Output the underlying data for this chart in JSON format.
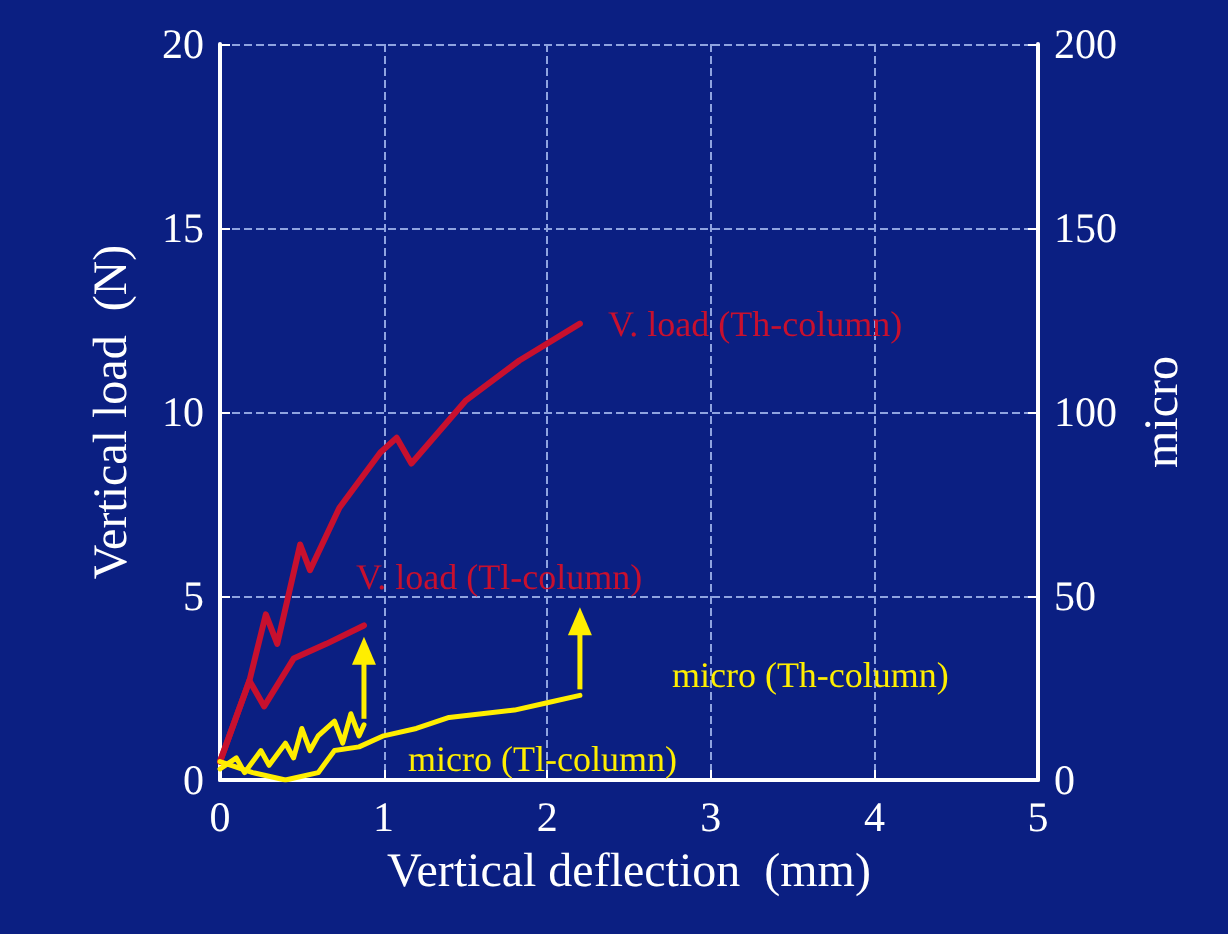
{
  "chart_data": {
    "type": "line",
    "xlabel": "Vertical deflection  (mm)",
    "ylabel": "Vertical load  (N)",
    "y2label": "micro",
    "xlim": [
      0,
      5
    ],
    "xticks": [
      0,
      1,
      2,
      3,
      4,
      5
    ],
    "ylim": [
      0,
      20
    ],
    "yticks": [
      0,
      5,
      10,
      15,
      20
    ],
    "y2lim": [
      0,
      200
    ],
    "y2ticks": [
      0,
      50,
      100,
      150,
      200
    ],
    "grid": true,
    "legend": false,
    "marker": "none",
    "line_style": "solid",
    "series": [
      {
        "name": "V. load (Th-column)",
        "color": "#c8102e",
        "x": [
          0,
          0.18,
          0.28,
          0.35,
          0.49,
          0.55,
          0.73,
          0.98,
          1.08,
          1.17,
          1.5,
          1.83,
          2.2
        ],
        "values": [
          0.5,
          2.7,
          4.5,
          3.7,
          6.4,
          5.7,
          7.4,
          8.9,
          9.3,
          8.6,
          10.3,
          11.4,
          12.4
        ]
      },
      {
        "name": "V. load (Tl-column)",
        "color": "#c8102e",
        "x": [
          0,
          0.18,
          0.27,
          0.45,
          0.65,
          0.88
        ],
        "values": [
          0.5,
          2.7,
          2.0,
          3.3,
          3.7,
          4.2
        ]
      },
      {
        "name": "micro (Th-column)",
        "color": "#ffee00",
        "axis": "y2",
        "x": [
          0,
          0.2,
          0.4,
          0.6,
          0.7,
          0.85,
          1.0,
          1.2,
          1.4,
          1.6,
          1.8,
          2.0,
          2.2
        ],
        "values": [
          5,
          2,
          0,
          2,
          8,
          9,
          12,
          14,
          17,
          18,
          19,
          21,
          23
        ]
      },
      {
        "name": "micro (Tl-column)",
        "color": "#ffee00",
        "axis": "y2",
        "x": [
          0,
          0.1,
          0.15,
          0.25,
          0.3,
          0.4,
          0.45,
          0.5,
          0.55,
          0.6,
          0.7,
          0.75,
          0.8,
          0.85,
          0.88
        ],
        "values": [
          3,
          6,
          2,
          8,
          4,
          10,
          6,
          14,
          8,
          12,
          16,
          10,
          18,
          12,
          15
        ]
      }
    ]
  }
}
